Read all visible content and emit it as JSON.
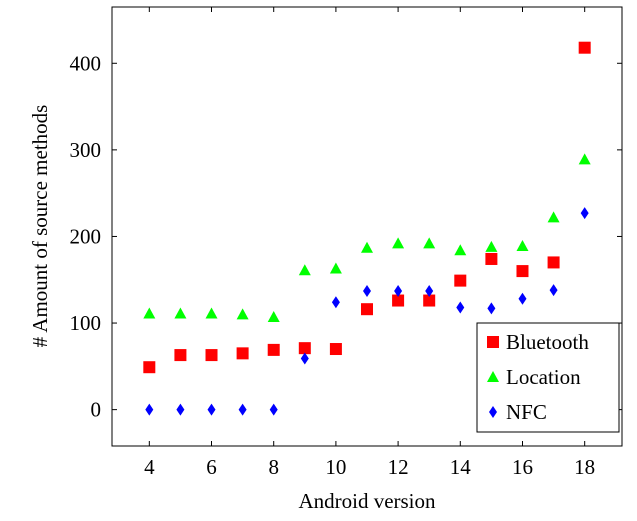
{
  "chart_data": {
    "type": "scatter",
    "title": "",
    "xlabel": "Android version",
    "ylabel": "# Amount of source methods",
    "xlim": [
      2.8,
      19.2
    ],
    "ylim": [
      -42,
      465
    ],
    "xticks": [
      4,
      6,
      8,
      10,
      12,
      14,
      16,
      18
    ],
    "yticks": [
      0,
      100,
      200,
      300,
      400
    ],
    "grid": false,
    "legend_position": "bottom-right",
    "x": [
      4,
      5,
      6,
      7,
      8,
      9,
      10,
      11,
      12,
      13,
      14,
      15,
      16,
      17,
      18
    ],
    "series": [
      {
        "name": "Bluetooth",
        "marker": "square",
        "color": "#ff0000",
        "values": [
          49,
          63,
          63,
          65,
          69,
          71,
          70,
          116,
          126,
          126,
          149,
          174,
          160,
          170,
          418
        ]
      },
      {
        "name": "Location",
        "marker": "triangle",
        "color": "#00ff00",
        "values": [
          111,
          111,
          111,
          110,
          107,
          161,
          163,
          187,
          192,
          192,
          184,
          188,
          189,
          222,
          289
        ]
      },
      {
        "name": "NFC",
        "marker": "diamond",
        "color": "#0000ff",
        "values": [
          0,
          0,
          0,
          0,
          0,
          59,
          124,
          137,
          137,
          137,
          118,
          117,
          128,
          138,
          227
        ]
      }
    ]
  }
}
